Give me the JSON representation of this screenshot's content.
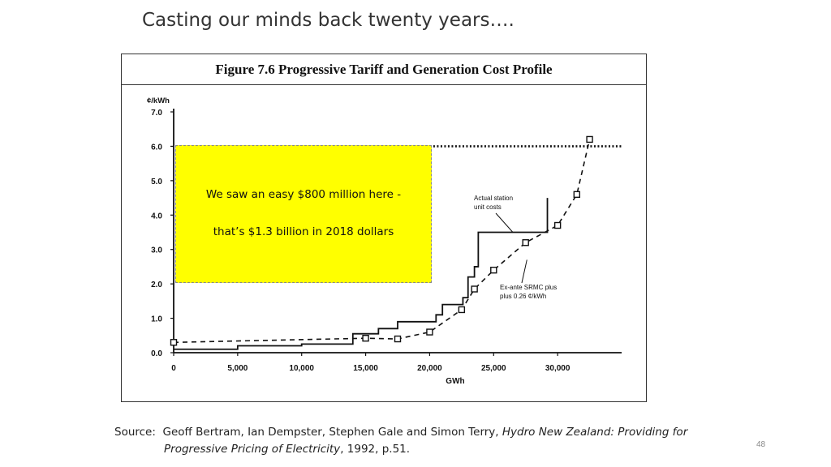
{
  "slide": {
    "title": "Casting our minds back twenty years….",
    "page_number": "48"
  },
  "figure": {
    "heading": "Figure 7.6  Progressive Tariff and Generation Cost Profile"
  },
  "callout": {
    "line1": "We saw an easy $800 million here -",
    "line2": "that’s $1.3 billion in 2018  dollars",
    "color": "#ffff00"
  },
  "source": {
    "label": "Source:",
    "authors": "Geoff Bertram, Ian Dempster, Stephen Gale and Simon Terry,",
    "title_part1": "Hydro New Zealand: Providing for",
    "title_part2": "Progressive Pricing of Electricity",
    "details": ", 1992, p.51."
  },
  "chart_data": {
    "type": "line",
    "ylabel": "¢/kWh",
    "xlabel": "GWh",
    "xlim": [
      0,
      35000
    ],
    "ylim": [
      0,
      7
    ],
    "x_ticks": [
      0,
      5000,
      10000,
      15000,
      20000,
      25000,
      30000
    ],
    "x_tick_labels": [
      "0",
      "5,000",
      "10,000",
      "15,000",
      "20,000",
      "25,000",
      "30,000"
    ],
    "y_ticks": [
      0,
      1,
      2,
      3,
      4,
      5,
      6,
      7
    ],
    "y_tick_labels": [
      "0.0",
      "1.0",
      "2.0",
      "3.0",
      "4.0",
      "5.0",
      "6.0",
      "7.0"
    ],
    "tariff_level": 6.0,
    "tariff_from_x": 20000,
    "series": [
      {
        "name": "Actual station unit costs",
        "style": "solid-step",
        "points": [
          [
            0,
            0.1
          ],
          [
            5000,
            0.1
          ],
          [
            5000,
            0.2
          ],
          [
            10000,
            0.2
          ],
          [
            10000,
            0.25
          ],
          [
            14000,
            0.25
          ],
          [
            14000,
            0.55
          ],
          [
            16000,
            0.55
          ],
          [
            16000,
            0.7
          ],
          [
            17500,
            0.7
          ],
          [
            17500,
            0.9
          ],
          [
            20500,
            0.9
          ],
          [
            20500,
            1.1
          ],
          [
            21000,
            1.1
          ],
          [
            21000,
            1.4
          ],
          [
            22600,
            1.4
          ],
          [
            22600,
            1.6
          ],
          [
            23000,
            1.6
          ],
          [
            23000,
            2.2
          ],
          [
            23500,
            2.2
          ],
          [
            23500,
            2.5
          ],
          [
            23800,
            2.5
          ],
          [
            23800,
            3.5
          ],
          [
            29200,
            3.5
          ],
          [
            29200,
            4.5
          ]
        ]
      },
      {
        "name": "Ex-ante SRMC plus plus 0.26 ¢/kWh",
        "style": "dashed-markers",
        "points": [
          [
            0,
            0.3
          ],
          [
            15000,
            0.42
          ],
          [
            17500,
            0.4
          ],
          [
            20000,
            0.6
          ],
          [
            22500,
            1.25
          ],
          [
            23500,
            1.85
          ],
          [
            25000,
            2.4
          ],
          [
            27500,
            3.2
          ],
          [
            30000,
            3.7
          ],
          [
            31500,
            4.6
          ],
          [
            32500,
            6.2
          ]
        ]
      }
    ],
    "annotations": [
      {
        "lines": [
          "Actual station",
          "unit costs"
        ]
      },
      {
        "lines": [
          "Ex-ante SRMC plus",
          "plus 0.26 ¢/kWh"
        ]
      }
    ]
  }
}
